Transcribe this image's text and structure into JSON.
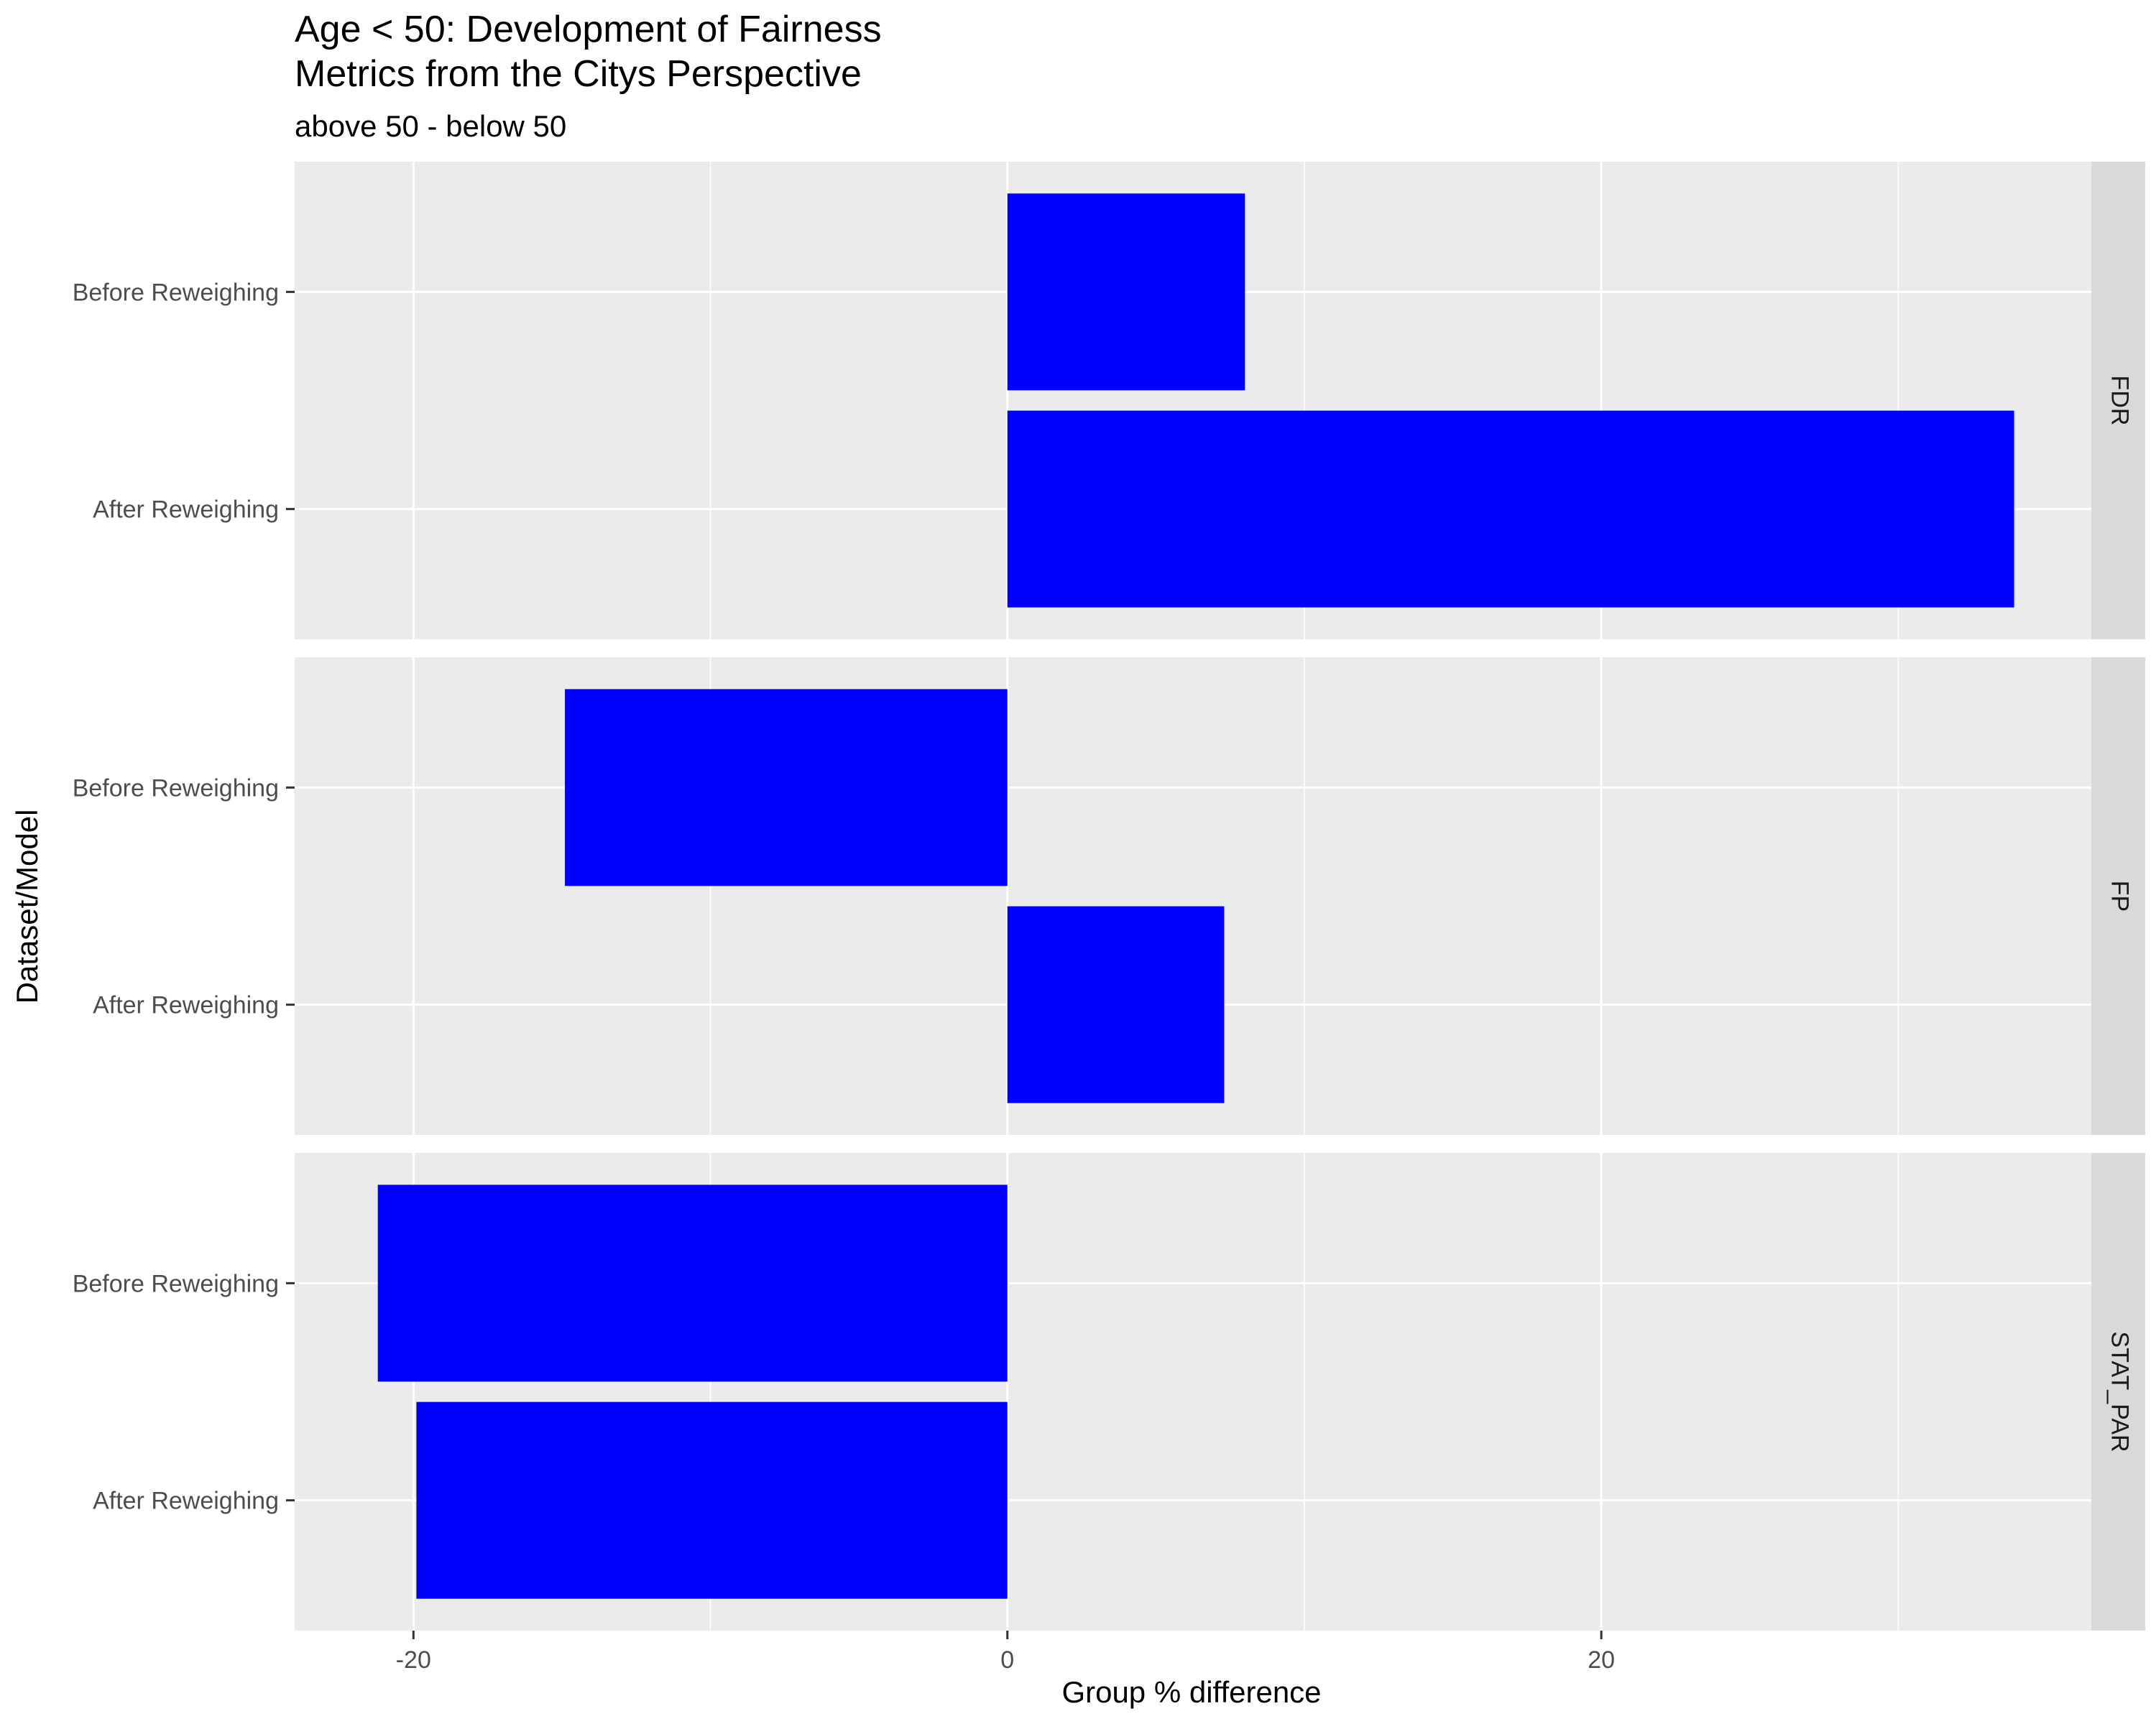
{
  "chart_data": {
    "type": "bar",
    "orientation": "horizontal",
    "title_lines": [
      "Age < 50: Development of Fairness",
      "Metrics from the Citys Perspective"
    ],
    "subtitle": "above 50 - below 50",
    "xlabel": "Group % difference",
    "ylabel": "Dataset/Model",
    "xlim": [
      -24,
      36.5
    ],
    "x_ticks": [
      -20,
      0,
      20
    ],
    "x_tick_labels": [
      "-20",
      "0",
      "20"
    ],
    "x_minor_ticks": [
      -10,
      10,
      30
    ],
    "categories": [
      "Before Reweighing",
      "After Reweighing"
    ],
    "bar_color": "#0000ff",
    "panel_background": "#ebebeb",
    "strip_background": "#d9d9d9",
    "grid_color": "#ffffff",
    "grid": true,
    "facets": [
      {
        "label": "FDR",
        "values": {
          "Before Reweighing": 8.0,
          "After Reweighing": 33.9
        }
      },
      {
        "label": "FP",
        "values": {
          "Before Reweighing": -14.9,
          "After Reweighing": 7.3
        }
      },
      {
        "label": "STAT_PAR",
        "values": {
          "Before Reweighing": -21.2,
          "After Reweighing": -19.9
        }
      }
    ]
  }
}
